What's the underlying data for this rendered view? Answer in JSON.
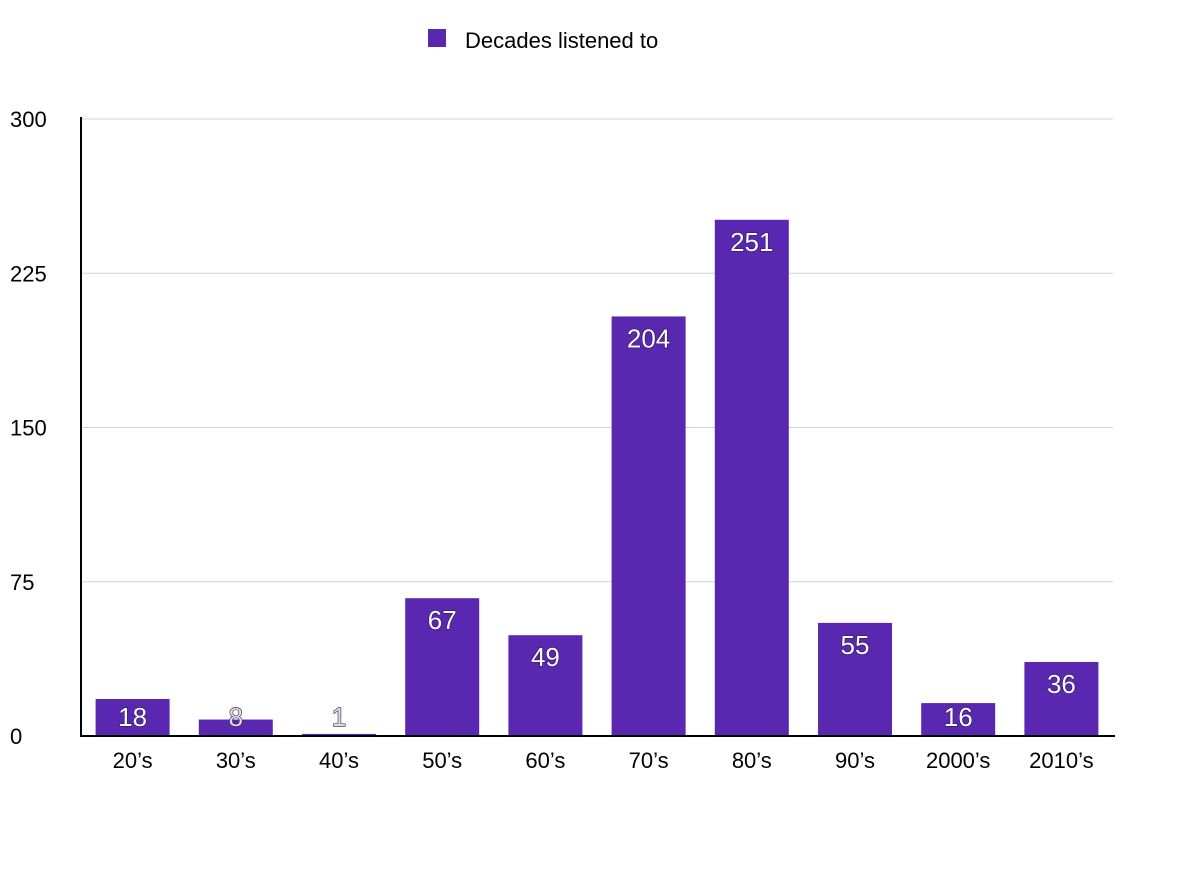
{
  "chart_data": {
    "type": "bar",
    "categories": [
      "20’s",
      "30’s",
      "40’s",
      "50’s",
      "60’s",
      "70’s",
      "80’s",
      "90’s",
      "2000’s",
      "2010’s"
    ],
    "series": [
      {
        "name": "Decades listened to",
        "values": [
          18,
          8,
          1,
          67,
          49,
          204,
          251,
          55,
          16,
          36
        ]
      }
    ],
    "title": "",
    "xlabel": "",
    "ylabel": "",
    "ylim": [
      0,
      300
    ],
    "yticks": [
      "0",
      "75",
      "150",
      "225",
      "300"
    ],
    "grid": true,
    "legend_position": "top-center",
    "bar_color": "#5a28b0"
  }
}
